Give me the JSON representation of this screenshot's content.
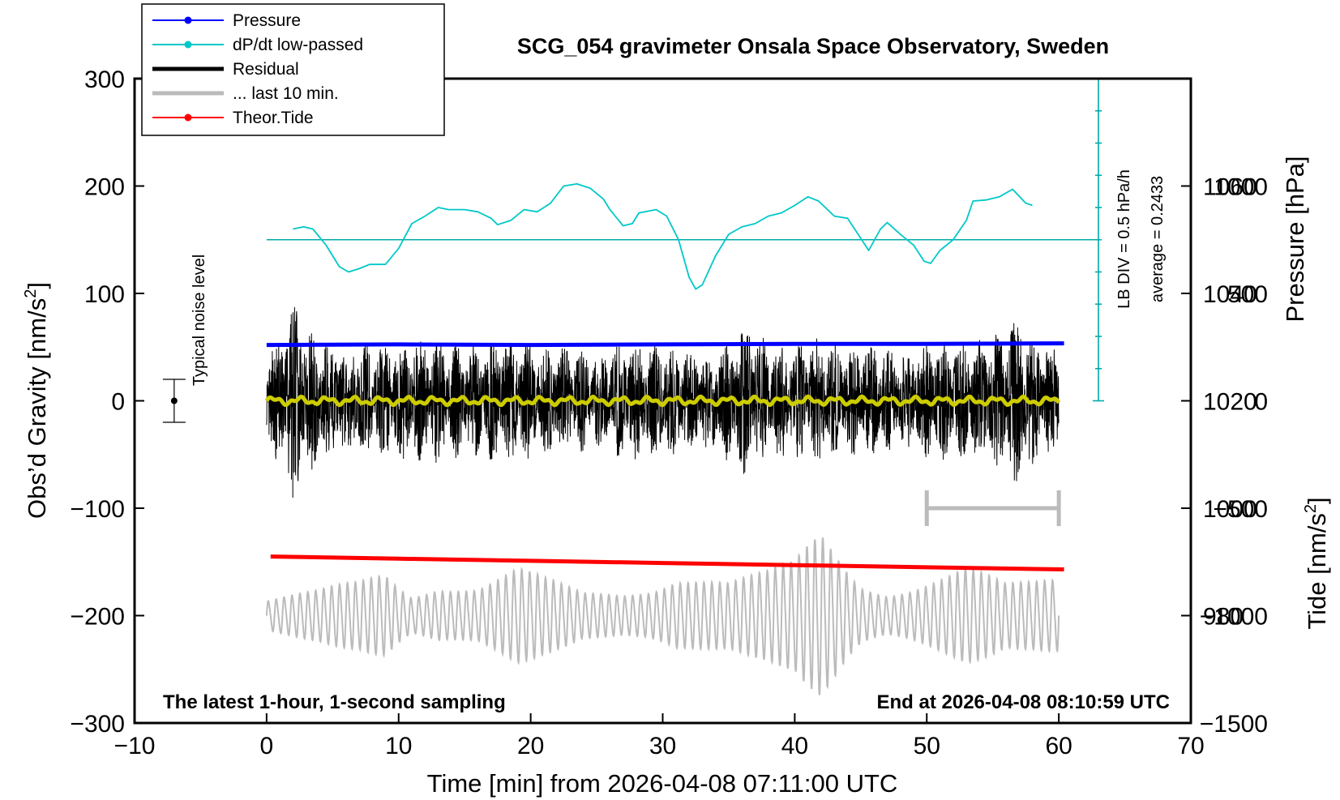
{
  "chart_data": {
    "type": "line",
    "title": "SCG_054 gravimeter Onsala Space Observatory, Sweden",
    "xlabel": "Time [min] from 2026-04-08 07:11:00 UTC",
    "ylabel": "Obs’d Gravity [nm/s",
    "ylabel_sup": "2",
    "ylabel_end": "]",
    "y2label": "Pressure [hPa]",
    "y3label": "Tide [nm/s",
    "y3label_sup": "2",
    "y3label_end": "]",
    "xlim": [
      -10,
      70
    ],
    "ylim": [
      -300,
      300
    ],
    "pressure_lim": [
      960,
      1080
    ],
    "tide_lim": [
      -1500,
      1500
    ],
    "x_ticks": [
      "−10",
      "0",
      "10",
      "20",
      "30",
      "40",
      "50",
      "60",
      "70"
    ],
    "x_tick_values": [
      -10,
      0,
      10,
      20,
      30,
      40,
      50,
      60,
      70
    ],
    "y_ticks": [
      "−300",
      "−200",
      "−100",
      "0",
      "100",
      "200",
      "300"
    ],
    "y_tick_values": [
      -300,
      -200,
      -100,
      0,
      100,
      200,
      300
    ],
    "pressure_ticks": [
      "980",
      "1000",
      "1020",
      "1040",
      "1060"
    ],
    "pressure_tick_values": [
      980,
      1000,
      1020,
      1040,
      1060
    ],
    "tide_ticks": [
      "−1500",
      "−1000",
      "−500",
      "0",
      "500",
      "1000"
    ],
    "tide_tick_values": [
      -1500,
      -1000,
      -500,
      0,
      500,
      1000
    ],
    "legend": [
      {
        "label": "Pressure",
        "color": "#0000ff",
        "style": "line-dot"
      },
      {
        "label": "dP/dt low-passed",
        "color": "#00c8c8",
        "style": "line-dot"
      },
      {
        "label": "Residual",
        "color": "#000000",
        "style": "thick"
      },
      {
        "label": "... last 10 min.",
        "color": "#bbbbbb",
        "style": "thick"
      },
      {
        "label": "Theor.Tide",
        "color": "#ff0000",
        "style": "line-dot"
      }
    ],
    "annotations": {
      "left_note": "The latest 1-hour, 1-second sampling",
      "right_note": "End at 2026-04-08 08:10:59 UTC",
      "noise_label": "Typical noise level",
      "lb_div": "LB DIV = 0.5 hPa/h",
      "average": "average = 0.2433"
    },
    "noise_bar": {
      "x": -7,
      "y": 0,
      "half_range": 20
    },
    "scale_bar": {
      "x_start": 50,
      "x_end": 60,
      "y": -100
    },
    "dpdt_scale": {
      "x": 63,
      "tick_count": 10,
      "zero_y": 150
    },
    "series": [
      {
        "name": "Pressure",
        "color": "#0000ff",
        "axis": "pressure",
        "points": [
          [
            0,
            1030.4
          ],
          [
            10,
            1030.5
          ],
          [
            20,
            1030.4
          ],
          [
            30,
            1030.5
          ],
          [
            40,
            1030.6
          ],
          [
            50,
            1030.6
          ],
          [
            60.4,
            1030.7
          ]
        ]
      },
      {
        "name": "dP/dt low-passed",
        "color": "#00c8c8",
        "axis": "gravity",
        "points": [
          [
            2,
            160
          ],
          [
            2.8,
            162
          ],
          [
            3.5,
            160
          ],
          [
            4.5,
            145
          ],
          [
            5.5,
            125
          ],
          [
            6.2,
            120
          ],
          [
            7,
            123
          ],
          [
            7.8,
            127
          ],
          [
            9,
            127
          ],
          [
            10,
            142
          ],
          [
            11,
            165
          ],
          [
            12,
            172
          ],
          [
            13,
            180
          ],
          [
            13.8,
            178
          ],
          [
            15,
            178
          ],
          [
            16,
            176
          ],
          [
            17,
            170
          ],
          [
            17.5,
            164
          ],
          [
            18.5,
            168
          ],
          [
            19.5,
            178
          ],
          [
            20.5,
            176
          ],
          [
            21.5,
            184
          ],
          [
            22.5,
            200
          ],
          [
            23.5,
            202
          ],
          [
            24.5,
            198
          ],
          [
            25.5,
            188
          ],
          [
            26,
            178
          ],
          [
            27,
            163
          ],
          [
            27.7,
            165
          ],
          [
            28.2,
            175
          ],
          [
            29.5,
            178
          ],
          [
            30.3,
            172
          ],
          [
            31.2,
            150
          ],
          [
            32,
            115
          ],
          [
            32.5,
            104
          ],
          [
            33,
            108
          ],
          [
            34,
            135
          ],
          [
            35,
            155
          ],
          [
            36,
            162
          ],
          [
            37,
            165
          ],
          [
            38,
            172
          ],
          [
            39,
            175
          ],
          [
            40,
            182
          ],
          [
            41,
            190
          ],
          [
            41.8,
            186
          ],
          [
            43,
            172
          ],
          [
            44,
            170
          ],
          [
            44.8,
            155
          ],
          [
            45.6,
            140
          ],
          [
            46.5,
            160
          ],
          [
            47,
            166
          ],
          [
            48,
            155
          ],
          [
            49,
            145
          ],
          [
            49.8,
            130
          ],
          [
            50.3,
            128
          ],
          [
            51,
            140
          ],
          [
            52,
            150
          ],
          [
            53,
            168
          ],
          [
            53.5,
            186
          ],
          [
            54.5,
            187
          ],
          [
            55.5,
            190
          ],
          [
            56.5,
            197
          ],
          [
            57.5,
            184
          ],
          [
            58,
            182
          ]
        ]
      },
      {
        "name": "Theor.Tide",
        "color": "#ff0000",
        "axis": "gravity",
        "points": [
          [
            0.3,
            -145
          ],
          [
            10,
            -147
          ],
          [
            20,
            -149
          ],
          [
            30,
            -151
          ],
          [
            40,
            -153
          ],
          [
            50,
            -155
          ],
          [
            60.4,
            -157
          ]
        ]
      },
      {
        "name": "Residual",
        "color": "#000000",
        "axis": "gravity",
        "generator": "noise",
        "x_range": [
          0,
          60
        ],
        "amplitude_envelope": [
          [
            0,
            50
          ],
          [
            1,
            60
          ],
          [
            2,
            100
          ],
          [
            3,
            70
          ],
          [
            5,
            55
          ],
          [
            7,
            55
          ],
          [
            10,
            55
          ],
          [
            13,
            60
          ],
          [
            15,
            50
          ],
          [
            18,
            60
          ],
          [
            20,
            55
          ],
          [
            23,
            50
          ],
          [
            25,
            45
          ],
          [
            27,
            55
          ],
          [
            30,
            55
          ],
          [
            33,
            45
          ],
          [
            35,
            60
          ],
          [
            36.5,
            75
          ],
          [
            38,
            55
          ],
          [
            40,
            55
          ],
          [
            42,
            60
          ],
          [
            44,
            50
          ],
          [
            46,
            55
          ],
          [
            48,
            45
          ],
          [
            50,
            55
          ],
          [
            53,
            55
          ],
          [
            55,
            60
          ],
          [
            57,
            80
          ],
          [
            58,
            60
          ],
          [
            60,
            50
          ]
        ]
      },
      {
        "name": "Residual smoothed",
        "color": "#cccc00",
        "axis": "gravity",
        "points": [
          [
            0,
            0
          ],
          [
            60,
            0
          ]
        ]
      },
      {
        "name": "... last 10 min.",
        "color": "#bbbbbb",
        "axis": "gravity",
        "generator": "oscillation",
        "x_range": [
          0,
          60
        ],
        "center": -200,
        "period_min": 0.6,
        "amplitude_envelope": [
          [
            0,
            15
          ],
          [
            4,
            20
          ],
          [
            7,
            30
          ],
          [
            9,
            45
          ],
          [
            11,
            25
          ],
          [
            13,
            40
          ],
          [
            16,
            30
          ],
          [
            19,
            40
          ],
          [
            21,
            30
          ],
          [
            24,
            20
          ],
          [
            27,
            25
          ],
          [
            29,
            35
          ],
          [
            31,
            50
          ],
          [
            33,
            40
          ],
          [
            35,
            30
          ],
          [
            38,
            35
          ],
          [
            40,
            45
          ],
          [
            42,
            80
          ],
          [
            43,
            70
          ],
          [
            45,
            40
          ],
          [
            47,
            30
          ],
          [
            50,
            35
          ],
          [
            53,
            40
          ],
          [
            56,
            25
          ],
          [
            58,
            30
          ],
          [
            60,
            40
          ]
        ]
      }
    ]
  }
}
